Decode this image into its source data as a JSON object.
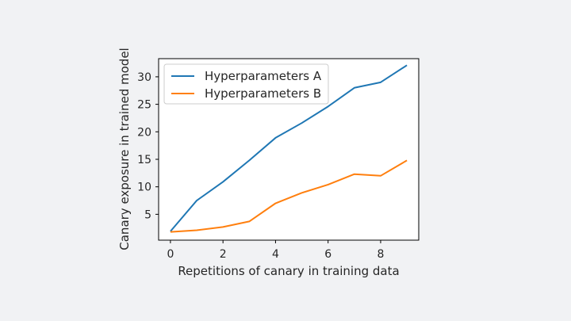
{
  "chart_data": {
    "type": "line",
    "title": "",
    "xlabel": "Repetitions of canary in training data",
    "ylabel": "Canary exposure in trained model",
    "xlim": [
      -0.45,
      9.45
    ],
    "ylim": [
      0.3,
      33.3
    ],
    "xticks": [
      0,
      2,
      4,
      6,
      8
    ],
    "yticks": [
      5,
      10,
      15,
      20,
      25,
      30
    ],
    "grid": false,
    "legend_position": "upper-left",
    "x": [
      0,
      1,
      2,
      3,
      4,
      5,
      6,
      7,
      8,
      9
    ],
    "series": [
      {
        "name": "Hyperparameters A",
        "color": "#1f77b4",
        "values": [
          1.9,
          7.5,
          10.9,
          14.8,
          18.9,
          21.6,
          24.6,
          28.0,
          29.0,
          32.1
        ]
      },
      {
        "name": "Hyperparameters B",
        "color": "#ff7f0e",
        "values": [
          1.8,
          2.1,
          2.7,
          3.7,
          7.0,
          8.9,
          10.4,
          12.3,
          12.0,
          14.8
        ]
      }
    ]
  }
}
